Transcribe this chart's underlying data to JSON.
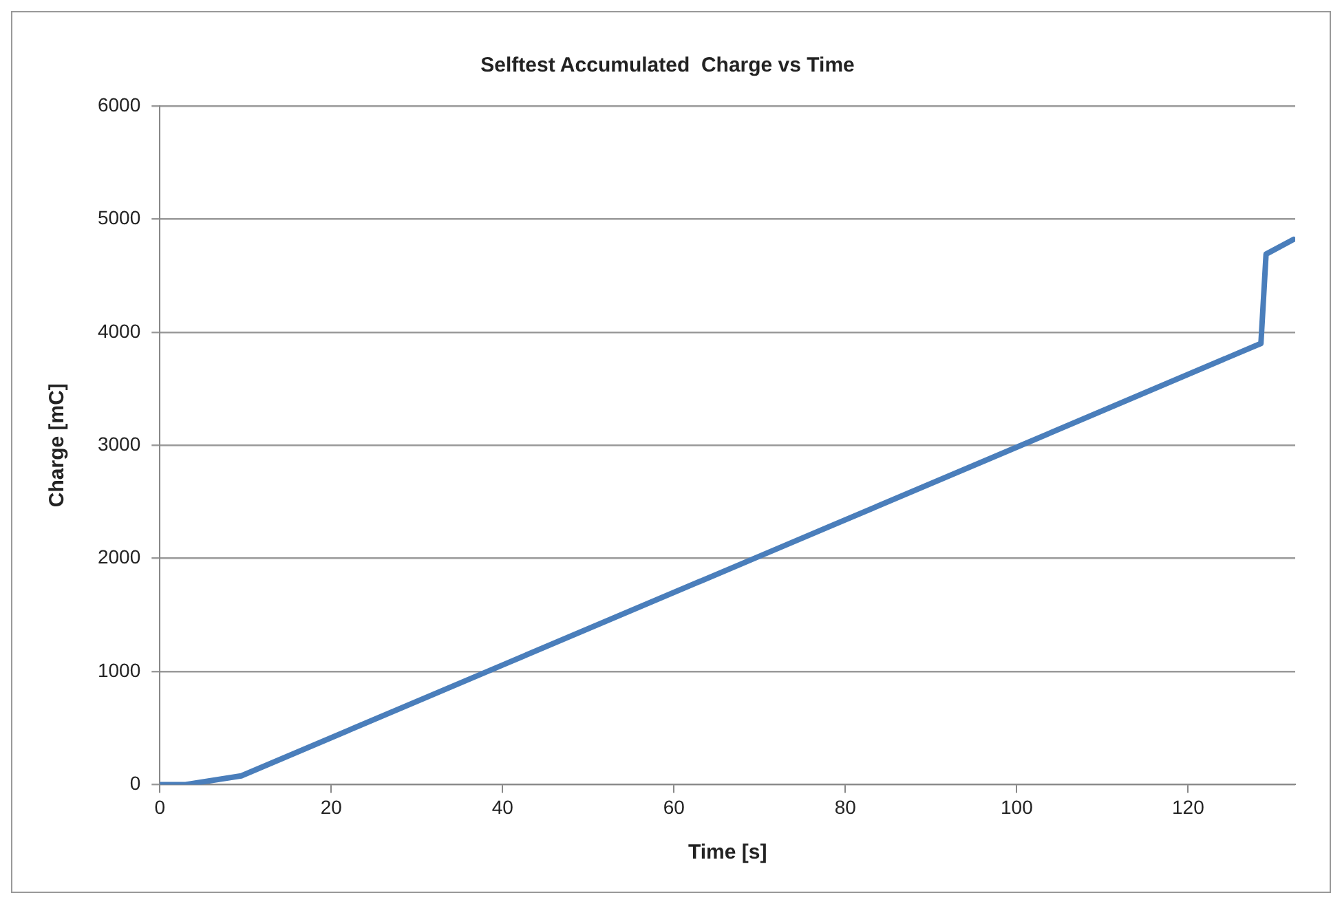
{
  "chart_data": {
    "type": "line",
    "title": "Selftest Accumulated  Charge vs Time",
    "xlabel": "Time [s]",
    "ylabel": "Charge [mC]",
    "series": [
      {
        "color": "#4a7ebb",
        "x": [
          0,
          3,
          9.5,
          40,
          70,
          100,
          128.5,
          129.1,
          132.3
        ],
        "values": [
          0,
          0,
          77,
          1057,
          2020,
          2983,
          3900,
          4690,
          4820
        ]
      }
    ],
    "xlim": [
      0,
      132.5
    ],
    "xticks": [
      0,
      20,
      40,
      60,
      80,
      100,
      120
    ],
    "ylim": [
      0,
      6000
    ],
    "yticks": [
      0,
      1000,
      2000,
      3000,
      4000,
      5000,
      6000
    ],
    "grid": "y",
    "legend": false,
    "marker": "none",
    "line_style": "solid"
  }
}
